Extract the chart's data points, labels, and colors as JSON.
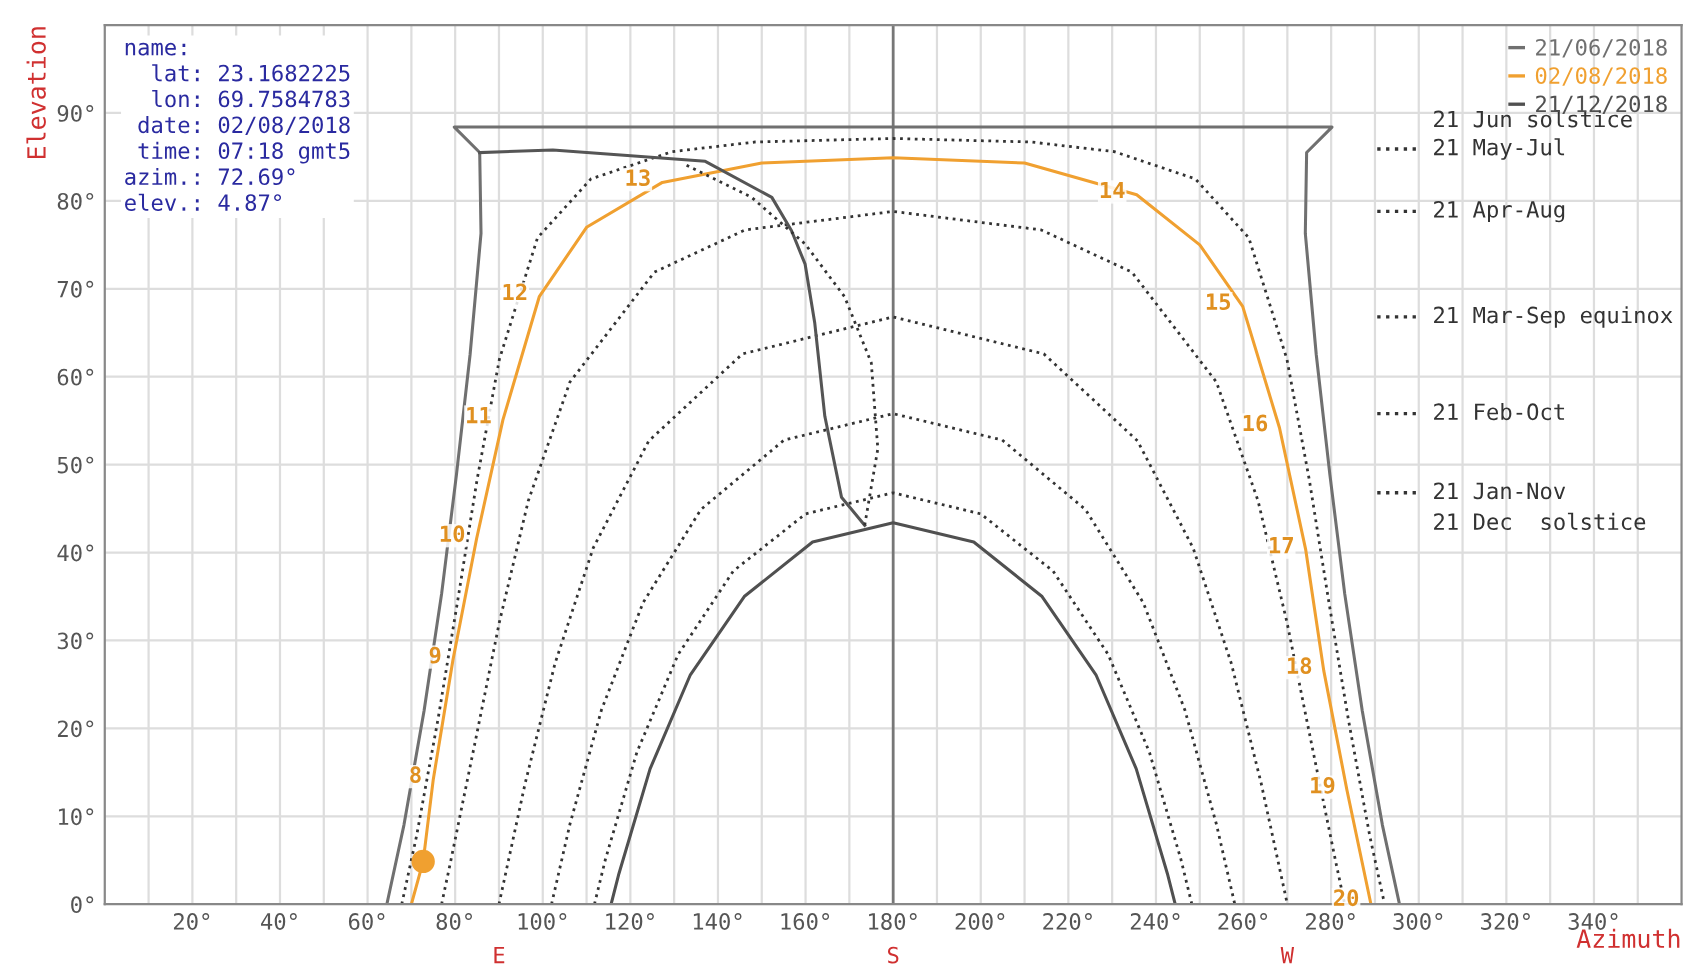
{
  "chart_data": {
    "type": "line",
    "xlabel": "Azimuth",
    "ylabel": "Elevation",
    "xlim": [
      0,
      360
    ],
    "ylim": [
      0,
      100
    ],
    "xticks": [
      {
        "value": 10,
        "label": null
      },
      {
        "value": 20,
        "label": "20°"
      },
      {
        "value": 30,
        "label": null
      },
      {
        "value": 40,
        "label": "40°"
      },
      {
        "value": 50,
        "label": null
      },
      {
        "value": 60,
        "label": "60°"
      },
      {
        "value": 70,
        "label": null
      },
      {
        "value": 80,
        "label": "80°"
      },
      {
        "value": 90,
        "label": null
      },
      {
        "value": 100,
        "label": "100°"
      },
      {
        "value": 110,
        "label": null
      },
      {
        "value": 120,
        "label": "120°"
      },
      {
        "value": 130,
        "label": null
      },
      {
        "value": 140,
        "label": "140°"
      },
      {
        "value": 150,
        "label": null
      },
      {
        "value": 160,
        "label": "160°"
      },
      {
        "value": 170,
        "label": null
      },
      {
        "value": 180,
        "label": "180°"
      },
      {
        "value": 190,
        "label": null
      },
      {
        "value": 200,
        "label": "200°"
      },
      {
        "value": 210,
        "label": null
      },
      {
        "value": 220,
        "label": "220°"
      },
      {
        "value": 230,
        "label": null
      },
      {
        "value": 240,
        "label": "240°"
      },
      {
        "value": 250,
        "label": null
      },
      {
        "value": 260,
        "label": "260°"
      },
      {
        "value": 270,
        "label": null
      },
      {
        "value": 280,
        "label": "280°"
      },
      {
        "value": 290,
        "label": null
      },
      {
        "value": 300,
        "label": "300°"
      },
      {
        "value": 310,
        "label": null
      },
      {
        "value": 320,
        "label": "320°"
      },
      {
        "value": 330,
        "label": null
      },
      {
        "value": 340,
        "label": "340°"
      },
      {
        "value": 350,
        "label": null
      }
    ],
    "yticks": [
      {
        "value": 0,
        "label": "0°"
      },
      {
        "value": 10,
        "label": "10°"
      },
      {
        "value": 20,
        "label": "20°"
      },
      {
        "value": 30,
        "label": "30°"
      },
      {
        "value": 40,
        "label": "40°"
      },
      {
        "value": 50,
        "label": "50°"
      },
      {
        "value": 60,
        "label": "60°"
      },
      {
        "value": 70,
        "label": "70°"
      },
      {
        "value": 80,
        "label": "80°"
      },
      {
        "value": 90,
        "label": "90°"
      }
    ],
    "grid": true,
    "legend": "top right",
    "ref_lines": [
      {
        "axis": "x",
        "value": 180,
        "color": "#777777"
      }
    ],
    "series": [
      {
        "name": "21/06/2018",
        "color": "#707070",
        "line_style": "solid",
        "x": [
          64.4,
          68.3,
          72.9,
          76.9,
          80.3,
          83.4,
          85.9,
          85.6,
          79.8,
          280.2,
          274.4,
          274.1,
          276.6,
          279.7,
          283.1,
          287.1,
          291.7,
          295.6
        ],
        "values": [
          0,
          9.0,
          22.0,
          35.3,
          48.9,
          62.5,
          76.3,
          85.5,
          88.4,
          88.4,
          85.5,
          76.3,
          62.5,
          48.9,
          35.3,
          22.0,
          9.0,
          0
        ]
      },
      {
        "name": "02/08/2018",
        "color": "#f0a030",
        "line_style": "solid",
        "x": [
          70,
          72.69,
          75,
          79.5,
          84.9,
          90.9,
          99.2,
          110,
          127.3,
          150,
          180,
          210,
          235.6,
          250,
          259.8,
          268.2,
          274.2,
          278.3,
          283.6,
          289
        ],
        "values": [
          0,
          4.87,
          14.2,
          27.8,
          41.6,
          55.1,
          69.1,
          77,
          82.1,
          84.3,
          84.9,
          84.3,
          80.7,
          75,
          68,
          54.2,
          40.3,
          26.6,
          13,
          0.2
        ]
      },
      {
        "name": "21/12/2018",
        "color": "#505050",
        "line_style": "solid",
        "x": [
          115.6,
          117.4,
          124.5,
          133.7,
          146,
          161.6,
          180,
          198.4,
          214,
          226.3,
          235.5,
          242.6,
          244.4
        ],
        "values": [
          0,
          3.5,
          15.4,
          26.1,
          35,
          41.2,
          43.4,
          41.2,
          35,
          26.1,
          15.4,
          3.5,
          0
        ]
      },
      {
        "name": "21 May-Jul",
        "color": "#333333",
        "line_style": "dotted",
        "x": [
          67.8,
          71.2,
          76.1,
          80.6,
          85,
          90.1,
          98.8,
          111,
          129.5,
          148.5,
          180,
          211.5,
          230.5,
          249,
          261.2,
          269.9,
          275,
          279.4,
          283.9,
          288.8,
          292.2
        ],
        "values": [
          0,
          7.8,
          21.1,
          34.6,
          48.3,
          62,
          75.8,
          82.5,
          85.6,
          86.7,
          87.1,
          86.7,
          85.6,
          82.5,
          75.8,
          62,
          48.3,
          34.6,
          21.1,
          7.8,
          0
        ]
      },
      {
        "name": "21 Apr-Aug",
        "color": "#333333",
        "line_style": "dotted",
        "x": [
          76.9,
          78.9,
          84.5,
          90.1,
          96.7,
          106.2,
          125.5,
          146.2,
          180,
          213.8,
          234.5,
          253.8,
          263.3,
          269.9,
          275.5,
          281.1,
          283.1
        ],
        "values": [
          0,
          4.7,
          18.3,
          32.1,
          45.9,
          59.4,
          71.9,
          76.7,
          78.8,
          76.7,
          71.9,
          59.4,
          45.9,
          32.1,
          18.3,
          4.7,
          0
        ]
      },
      {
        "name": "21 Mar-Sep equinox",
        "color": "#333333",
        "line_style": "dotted",
        "x": [
          90,
          96,
          102.8,
          111.5,
          124.2,
          145.6,
          180,
          214.4,
          235.8,
          248.5,
          257.2,
          264,
          270
        ],
        "values": [
          0,
          13.8,
          27.4,
          40.5,
          52.7,
          62.6,
          66.8,
          62.6,
          52.7,
          40.5,
          27.4,
          13.8,
          0
        ]
      },
      {
        "name": "21 Feb-Oct",
        "color": "#333333",
        "line_style": "dotted",
        "x": [
          102,
          106.2,
          113.4,
          122.9,
          136.1,
          155.1,
          180,
          204.9,
          223.9,
          237.1,
          246.6,
          253.8,
          258
        ],
        "values": [
          0,
          9.1,
          22.1,
          34.3,
          44.9,
          52.8,
          55.8,
          52.8,
          44.9,
          34.3,
          22.1,
          9.1,
          0
        ]
      },
      {
        "name": "21 Jan-Nov",
        "color": "#333333",
        "line_style": "dotted",
        "x": [
          111.8,
          114.3,
          121.5,
          130.9,
          143.5,
          160,
          180,
          200,
          216.5,
          229.1,
          238.5,
          245.7,
          248.2
        ],
        "values": [
          0,
          5.1,
          17.3,
          28.4,
          37.9,
          44.4,
          46.8,
          44.4,
          37.9,
          28.4,
          17.3,
          5.1,
          0
        ]
      },
      {
        "color": "#555555",
        "line_style": "solid",
        "x": [
          85.6,
          102.3,
          137.1,
          152.3,
          156.8,
          159.9,
          162.1,
          164.4,
          168.2,
          173.5
        ],
        "values": [
          85.5,
          85.8,
          84.5,
          80.4,
          76.6,
          72.8,
          66.1,
          55.5,
          46.3,
          43.1
        ]
      },
      {
        "color": "#333333",
        "line_style": "dotted",
        "x": [
          173.5,
          176.5,
          175,
          168.9,
          159.9,
          147.7,
          132.6
        ],
        "values": [
          43.1,
          51.8,
          61.6,
          69.1,
          75.1,
          80.4,
          84.1
        ]
      },
      {
        "type": "scatter",
        "marker": "circle",
        "color": "#f0a030",
        "x": [
          72.69
        ],
        "values": [
          4.87
        ]
      }
    ],
    "annotations": [
      "name:\n  lat: 23.1682225\n  lon: 69.7584783\n date: 02/08/2018\n time: 07:18 gmt5\nazim.: 72.69°\nelev.: 4.87°",
      "21 Jun solstice",
      "21 Dec  solstice",
      {
        "text": "E",
        "x": 90,
        "y": 0
      },
      {
        "text": "S",
        "x": 180,
        "y": 0
      },
      {
        "text": "W",
        "x": 270,
        "y": 0
      },
      {
        "text": "8",
        "x": 75,
        "y": 14.2
      },
      {
        "text": "9",
        "x": 79.5,
        "y": 27.8
      },
      {
        "text": "10",
        "x": 84.9,
        "y": 41.6
      },
      {
        "text": "11",
        "x": 90.9,
        "y": 55.1
      },
      {
        "text": "12",
        "x": 99.2,
        "y": 69.1
      },
      {
        "text": "13",
        "x": 127.3,
        "y": 82.1
      },
      {
        "text": "14",
        "x": 235.6,
        "y": 80.7
      },
      {
        "text": "15",
        "x": 259.8,
        "y": 68
      },
      {
        "text": "16",
        "x": 268.2,
        "y": 54.2
      },
      {
        "text": "17",
        "x": 274.2,
        "y": 40.3
      },
      {
        "text": "18",
        "x": 278.3,
        "y": 26.6
      },
      {
        "text": "19",
        "x": 283.6,
        "y": 13
      },
      {
        "text": "20",
        "x": 289,
        "y": 0.2
      }
    ]
  }
}
